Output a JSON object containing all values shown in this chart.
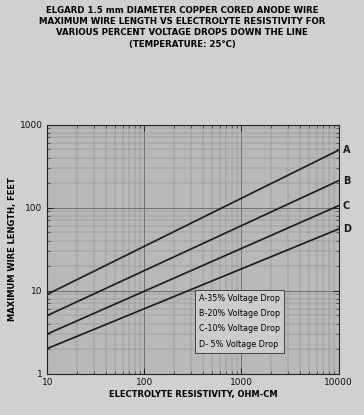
{
  "title_line1": "ELGARD 1.5 mm DIAMETER COPPER CORED ANODE WIRE",
  "title_line2": "MAXIMUM WIRE LENGTH VS ELECTROLYTE RESISTIVITY FOR",
  "title_line3": "VARIOUS PERCENT VOLTAGE DROPS DOWN THE LINE",
  "title_line4": "(TEMPERATURE: 25°C)",
  "xlabel": "ELECTROLYTE RESISTIVITY, OHM-CM",
  "ylabel": "MAXIMUM WIRE LENGTH, FEET",
  "xlim": [
    10,
    10000
  ],
  "ylim": [
    1,
    1000
  ],
  "lines": [
    {
      "label": "A",
      "legend": "A-35% Voltage Drop",
      "x": [
        10,
        10000
      ],
      "y": [
        9.0,
        490.0
      ]
    },
    {
      "label": "B",
      "legend": "B-20% Voltage Drop",
      "x": [
        10,
        10000
      ],
      "y": [
        5.0,
        210.0
      ]
    },
    {
      "label": "C",
      "legend": "C-10% Voltage Drop",
      "x": [
        10,
        10000
      ],
      "y": [
        3.0,
        105.0
      ]
    },
    {
      "label": "D",
      "legend": "D- 5% Voltage Drop",
      "x": [
        10,
        10000
      ],
      "y": [
        2.0,
        55.0
      ]
    }
  ],
  "line_color": "#1a1a1a",
  "line_width": 1.2,
  "bg_color": "#d0d0d0",
  "plot_bg_color": "#b8b8b8",
  "grid_major_color": "#666666",
  "grid_minor_color": "#888888",
  "label_font_size": 6.0,
  "title_font_size": 6.2,
  "legend_font_size": 5.8,
  "tick_label_size": 6.5,
  "legend_box_color": "#cccccc",
  "legend_box_edge": "#444444",
  "line_label_fontsize": 7.0
}
